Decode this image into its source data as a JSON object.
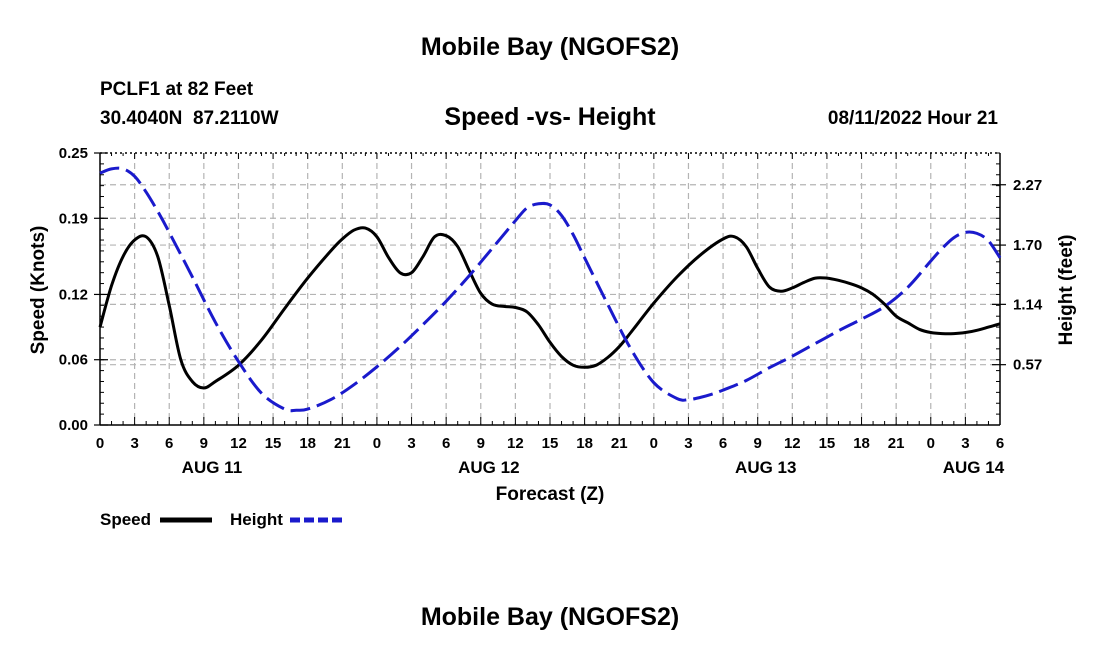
{
  "header": {
    "title": "Mobile Bay (NGOFS2)",
    "station": "PCLF1 at 82 Feet",
    "coords": "30.4040N  87.2110W",
    "subtitle": "Speed -vs- Height",
    "datetime": "08/11/2022 Hour 21",
    "footer_title": "Mobile Bay (NGOFS2)"
  },
  "legend": {
    "speed_label": "Speed",
    "height_label": "Height"
  },
  "colors": {
    "speed": "#000000",
    "height": "#1a1acc",
    "grid": "#b4b4b4"
  },
  "chart_data": {
    "type": "line",
    "title": "Speed -vs- Height",
    "xlabel": "Forecast (Z)",
    "ylabel_left": "Speed (Knots)",
    "ylabel_right": "Height (feet)",
    "xlim": [
      0,
      78
    ],
    "ylim_left": [
      0,
      0.25
    ],
    "ylim_right": [
      0.0,
      2.57
    ],
    "x_ticks": [
      0,
      3,
      6,
      9,
      12,
      15,
      18,
      21,
      24,
      27,
      30,
      33,
      36,
      39,
      42,
      45,
      48,
      51,
      54,
      57,
      60,
      63,
      66,
      69,
      72,
      75,
      78
    ],
    "x_tick_labels": [
      "0",
      "3",
      "6",
      "9",
      "12",
      "15",
      "18",
      "21",
      "0",
      "3",
      "6",
      "9",
      "12",
      "15",
      "18",
      "21",
      "0",
      "3",
      "6",
      "9",
      "12",
      "15",
      "18",
      "21",
      "0",
      "3",
      "6"
    ],
    "date_labels": [
      {
        "label": "AUG 11",
        "x": 9.7
      },
      {
        "label": "AUG 12",
        "x": 33.7
      },
      {
        "label": "AUG 13",
        "x": 57.7
      },
      {
        "label": "AUG 14",
        "x": 75.7
      }
    ],
    "y_left_ticks": [
      0.0,
      0.06,
      0.12,
      0.19,
      0.25
    ],
    "y_left_tick_labels": [
      "0.00",
      "0.06",
      "0.12",
      "0.19",
      "0.25"
    ],
    "y_right_ticks": [
      0.57,
      1.14,
      1.7,
      2.27
    ],
    "y_right_tick_labels": [
      "0.57",
      "1.14",
      "1.70",
      "2.27"
    ],
    "grid": true,
    "series": [
      {
        "name": "Speed",
        "axis": "left",
        "style": "solid",
        "x": [
          0,
          1,
          2,
          3,
          4,
          5,
          6,
          7,
          8,
          9,
          10,
          12,
          14,
          16,
          18,
          20,
          21,
          22,
          23,
          24,
          25,
          26,
          27,
          28,
          29,
          30,
          31,
          32,
          33,
          34,
          35,
          36,
          37,
          38,
          39,
          40,
          41,
          42,
          43,
          44,
          45,
          46,
          48,
          50,
          52,
          54,
          55,
          56,
          57,
          58,
          59,
          60,
          61,
          62,
          63,
          64,
          65,
          66,
          67,
          68,
          69,
          70,
          71,
          72,
          73,
          74,
          75,
          76,
          77,
          78
        ],
        "values": [
          0.09,
          0.128,
          0.155,
          0.17,
          0.173,
          0.155,
          0.11,
          0.06,
          0.04,
          0.034,
          0.04,
          0.055,
          0.078,
          0.107,
          0.135,
          0.16,
          0.171,
          0.179,
          0.181,
          0.173,
          0.154,
          0.14,
          0.14,
          0.155,
          0.173,
          0.174,
          0.164,
          0.142,
          0.121,
          0.111,
          0.109,
          0.108,
          0.104,
          0.092,
          0.076,
          0.063,
          0.055,
          0.053,
          0.055,
          0.062,
          0.072,
          0.085,
          0.112,
          0.136,
          0.156,
          0.171,
          0.173,
          0.164,
          0.144,
          0.127,
          0.123,
          0.126,
          0.131,
          0.135,
          0.135,
          0.133,
          0.13,
          0.126,
          0.12,
          0.111,
          0.1,
          0.094,
          0.088,
          0.085,
          0.084,
          0.084,
          0.085,
          0.087,
          0.09,
          0.093
        ]
      },
      {
        "name": "Height",
        "axis": "right",
        "style": "dashed",
        "x": [
          0,
          1,
          2,
          3,
          4,
          5,
          6,
          8,
          10,
          12,
          14,
          16,
          17,
          18,
          20,
          22,
          24,
          26,
          28,
          30,
          32,
          34,
          36,
          37,
          38,
          39,
          40,
          41,
          42,
          44,
          46,
          48,
          50,
          51,
          52,
          53,
          54,
          56,
          58,
          60,
          62,
          64,
          66,
          68,
          70,
          72,
          73,
          74,
          75,
          76,
          77,
          78
        ],
        "values": [
          2.38,
          2.42,
          2.42,
          2.35,
          2.2,
          2.02,
          1.82,
          1.4,
          0.97,
          0.6,
          0.3,
          0.15,
          0.14,
          0.15,
          0.24,
          0.38,
          0.55,
          0.74,
          0.95,
          1.17,
          1.41,
          1.67,
          1.93,
          2.05,
          2.09,
          2.08,
          1.98,
          1.8,
          1.58,
          1.14,
          0.72,
          0.4,
          0.25,
          0.24,
          0.26,
          0.29,
          0.33,
          0.42,
          0.54,
          0.65,
          0.77,
          0.89,
          1.0,
          1.12,
          1.3,
          1.55,
          1.67,
          1.77,
          1.82,
          1.81,
          1.74,
          1.58
        ]
      }
    ]
  }
}
